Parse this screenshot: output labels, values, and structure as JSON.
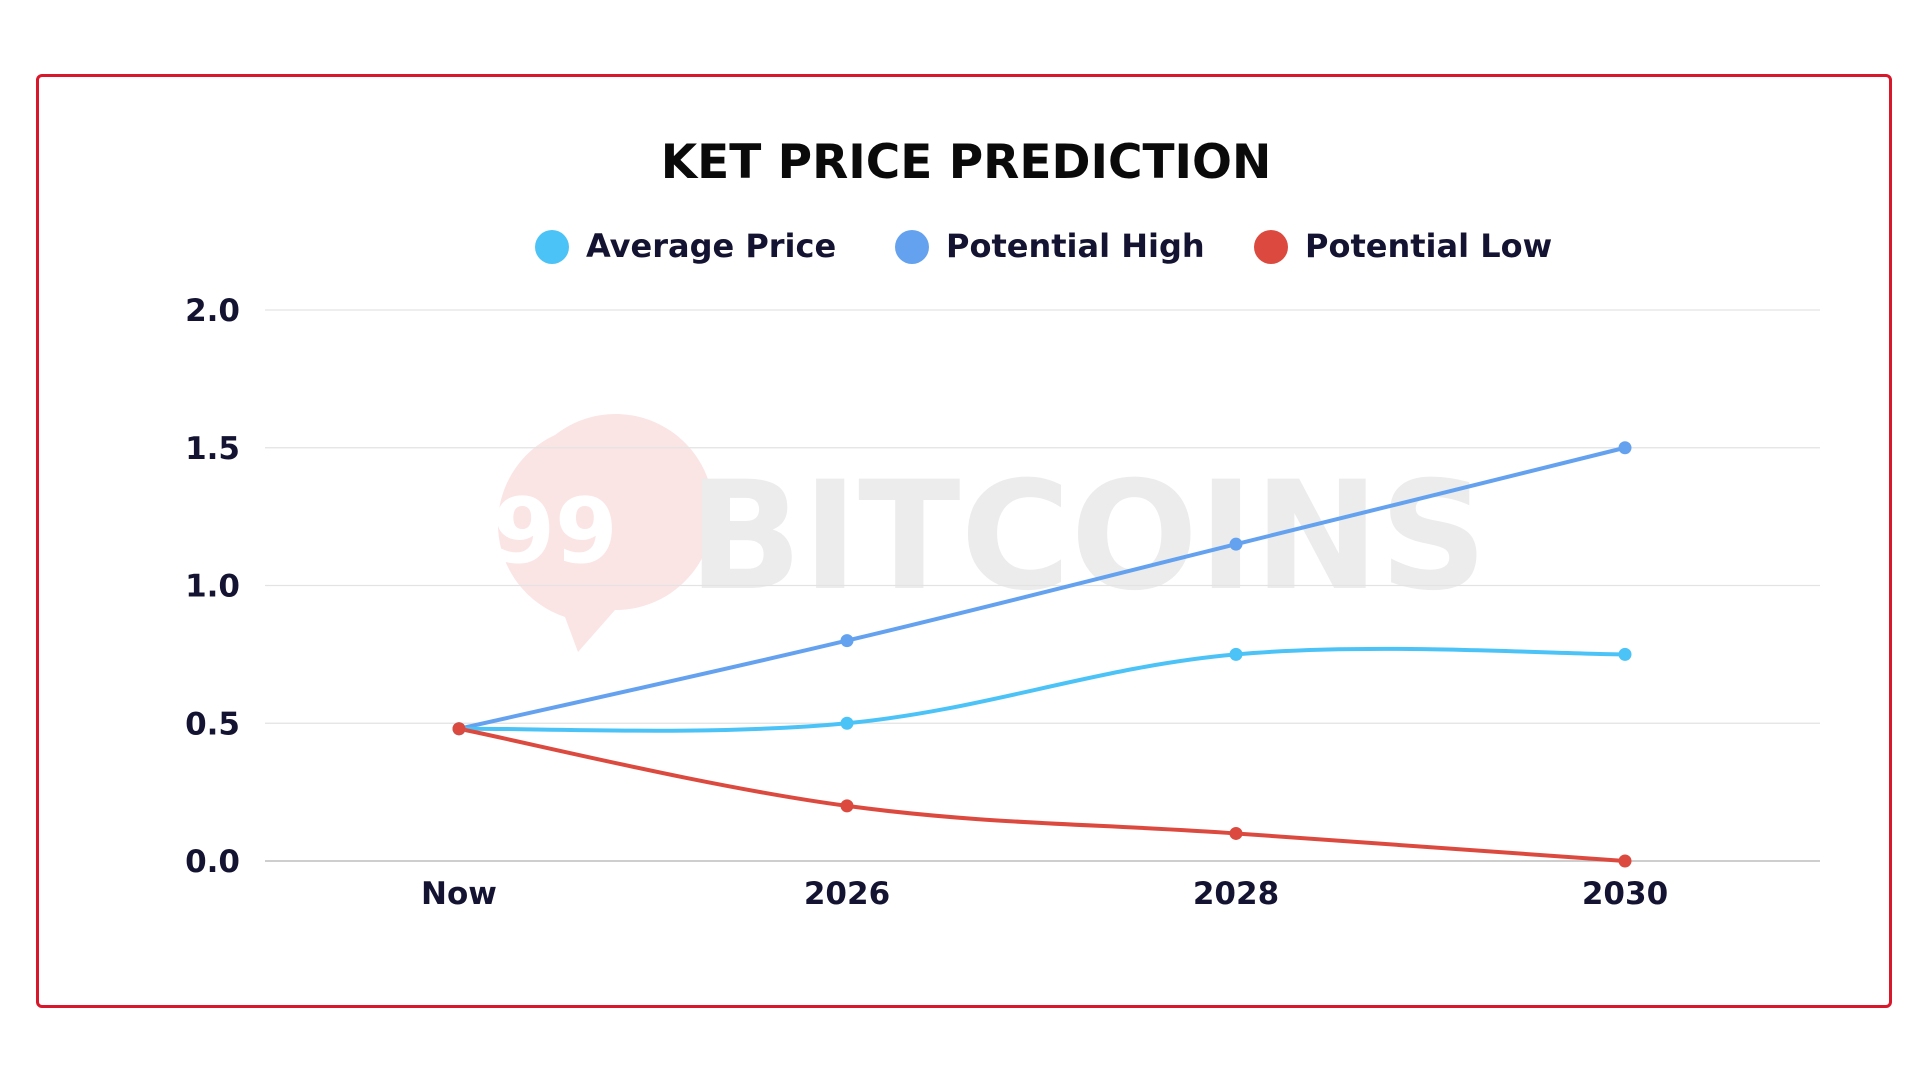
{
  "watermark": {
    "mark": "99",
    "text": "BITCOINS"
  },
  "chart_data": {
    "type": "line",
    "title": "KET PRICE PREDICTION",
    "xlabel": "",
    "ylabel": "",
    "categories": [
      "Now",
      "2026",
      "2028",
      "2030"
    ],
    "ylim": [
      0,
      2.0
    ],
    "yticks": [
      "0.0",
      "0.5",
      "1.0",
      "1.5",
      "2.0"
    ],
    "grid": true,
    "legend_position": "top-center",
    "series": [
      {
        "name": "Average Price",
        "color": "#4cc3f7",
        "values": [
          0.48,
          0.5,
          0.75,
          0.75
        ]
      },
      {
        "name": "Potential High",
        "color": "#64a2ef",
        "values": [
          0.48,
          0.8,
          1.15,
          1.5
        ]
      },
      {
        "name": "Potential Low",
        "color": "#dc4a3f",
        "values": [
          0.48,
          0.2,
          0.1,
          0.0
        ]
      }
    ]
  },
  "colors": {
    "frame_border": "#d9172b",
    "watermark_circle": "#fbe4e4",
    "watermark_text": "#ececec"
  }
}
